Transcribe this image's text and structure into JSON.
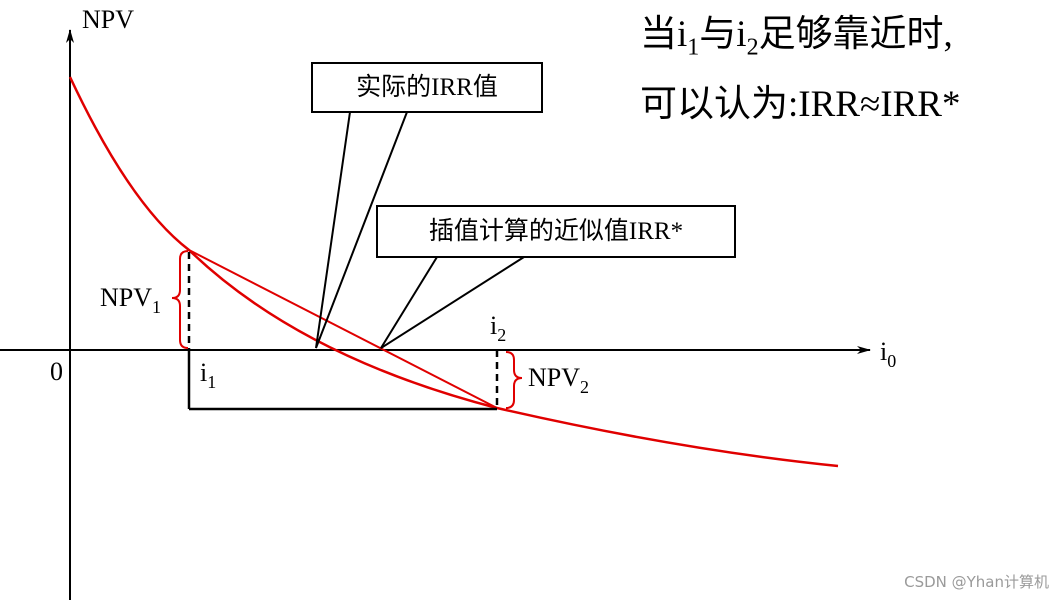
{
  "axes": {
    "y_label": "NPV",
    "x_label_base": "i",
    "x_label_sub": "0",
    "origin": "0"
  },
  "labels": {
    "i1_base": "i",
    "i1_sub": "1",
    "i2_base": "i",
    "i2_sub": "2",
    "npv1_base": "NPV",
    "npv1_sub": "1",
    "npv2_base": "NPV",
    "npv2_sub": "2"
  },
  "callouts": {
    "actual_irr": "实际的IRR值",
    "approx_irr": "插值计算的近似值IRR*"
  },
  "note": {
    "line1_a": "当i",
    "line1_sub1": "1",
    "line1_b": "与i",
    "line1_sub2": "2",
    "line1_c": "足够靠近时,",
    "line2": "可以认为:IRR≈IRR*"
  },
  "watermark": "CSDN @Yhan计算机",
  "colors": {
    "curve": "#e00000",
    "axis": "#000000",
    "text": "#000000"
  }
}
